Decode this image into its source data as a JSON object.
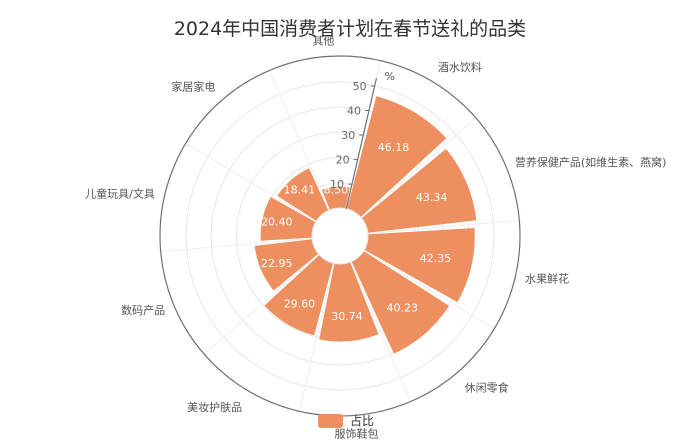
{
  "chart_data": {
    "type": "bar",
    "layout": "polar",
    "title": "2024年中国消费者计划在春节送礼的品类",
    "unit": "%",
    "radial_axis": {
      "min": 0,
      "max": 50,
      "ticks": [
        10,
        20,
        30,
        40,
        50
      ]
    },
    "categories": [
      "酒水饮料",
      "营养保健产品(如维生素、燕窝)",
      "水果鲜花",
      "休闲零食",
      "服饰鞋包",
      "美妆护肤品",
      "数码产品",
      "儿童玩具/文具",
      "家居家电",
      "其他"
    ],
    "series": [
      {
        "name": "占比",
        "values": [
          46.18,
          43.34,
          42.35,
          40.23,
          30.74,
          29.6,
          22.95,
          20.4,
          18.41,
          8.5
        ]
      }
    ],
    "color": "#EE8F5F",
    "legend": {
      "position": "bottom",
      "label": "占比"
    },
    "grid": true
  }
}
